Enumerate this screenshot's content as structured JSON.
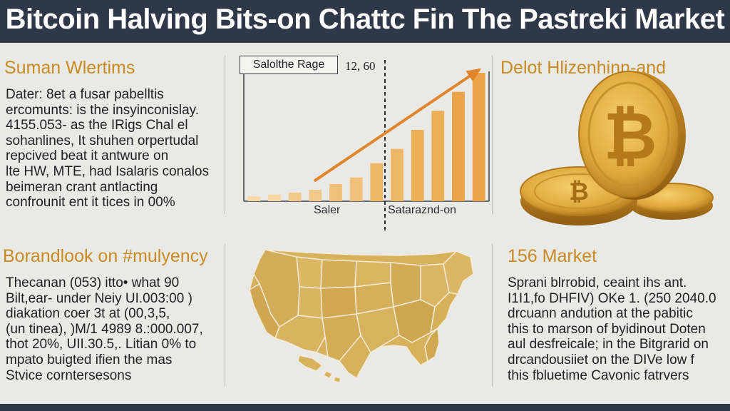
{
  "header": {
    "title": "Bitcoin Halving Bits-on Chattc Fin The Pastreki Market"
  },
  "sections": {
    "top_left": {
      "heading": "Suman Wlertims",
      "lines": [
        "Dater: 8et a fusar pabelltis",
        "ercomunts: is the insyinconislay.",
        "4155.053- as the IRigs Chal el",
        "sohanlines, It shuhen orpertudal",
        "repcived beat it antwure on",
        "lte HW, MTE, had Isalaris conalos",
        "beimeran crant antlacting",
        "confrounit ent it tices in 00%"
      ]
    },
    "top_right": {
      "heading": "Delot Hlizenhinn-and"
    },
    "bottom_left": {
      "heading": "Borandlook on #mulyency",
      "lines": [
        "Thecanan (053) itto• what 90",
        "Bilt,ear- under Neiy UI.003:00 )",
        "diakation coer 3t at (00,3,5,",
        "(un tinea), )M/1 4989 8.:000.007,",
        "thot 20%, UII.30.5,. Litian 0% to",
        "mpato buigted ifien the mas",
        "Stvice corntersesons"
      ]
    },
    "bottom_right": {
      "heading": "156 Market",
      "lines": [
        "Sprani blrrobid, ceaint ihs ant.",
        "I1I1,fo DHFIV) OKe 1. (250 2040.0",
        "drcuann andution at the pabitic",
        "this to marson of byidinout Doten",
        "aul desfreicale; in the Bitgrarid on",
        "drcandousiiet on the DIVe low f",
        "this fbluetime Cavonic fatrvers"
      ]
    }
  },
  "chart_data": {
    "type": "bar",
    "legend_label": "Salolthe Rage",
    "annotation": "12, 60",
    "xlabels": [
      "Saler",
      "Sataraznd-on"
    ],
    "values": [
      5,
      7,
      9,
      12,
      18,
      25,
      40,
      55,
      75,
      95,
      115,
      135
    ],
    "trend": [
      [
        3,
        22
      ],
      [
        11,
        138
      ]
    ],
    "ylim": [
      0,
      150
    ],
    "colors": [
      "#f7d9a6",
      "#f1c98a",
      "#f0c07a",
      "#eeb766",
      "#ecae57",
      "#eaa44a"
    ]
  },
  "colors": {
    "title_bar": "#2e3848",
    "heading": "#c98a23",
    "coin": "#d9a13a",
    "map": "#d7b15c",
    "arrow": "#e0852b"
  },
  "icons": {
    "coins": "bitcoin-coin-icon",
    "map": "usa-map-icon"
  }
}
